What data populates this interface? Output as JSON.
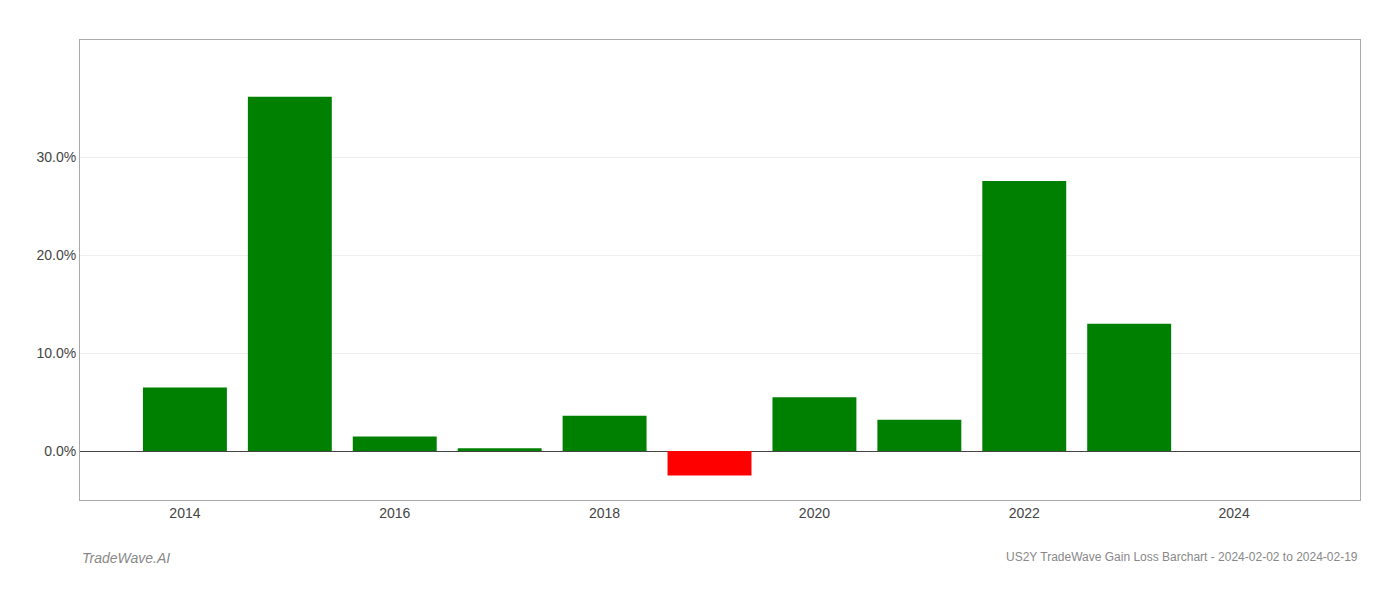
{
  "chart_data": {
    "type": "bar",
    "title": "US2Y TradeWave Gain Loss Barchart - 2024-02-02 to 2024-02-19",
    "annotations": [
      "TradeWave.AI"
    ],
    "x": [
      2014,
      2015,
      2016,
      2017,
      2018,
      2019,
      2020,
      2021,
      2022,
      2023
    ],
    "values": [
      0.065,
      0.362,
      0.015,
      0.003,
      0.036,
      -0.025,
      0.055,
      0.032,
      0.276,
      0.13
    ],
    "colors": [
      "#008000",
      "#008000",
      "#008000",
      "#008000",
      "#008000",
      "#ff0000",
      "#008000",
      "#008000",
      "#008000",
      "#008000"
    ],
    "xlim": [
      2013.0,
      2025.2
    ],
    "xticks": [
      2014,
      2016,
      2018,
      2020,
      2022,
      2024
    ],
    "ylim": [
      -0.05,
      0.42
    ],
    "yticks": [
      {
        "value": 0.0,
        "label": "0.0%"
      },
      {
        "value": 0.1,
        "label": "10.0%"
      },
      {
        "value": 0.2,
        "label": "20.0%"
      },
      {
        "value": 0.3,
        "label": "30.0%"
      }
    ],
    "grid": true
  }
}
